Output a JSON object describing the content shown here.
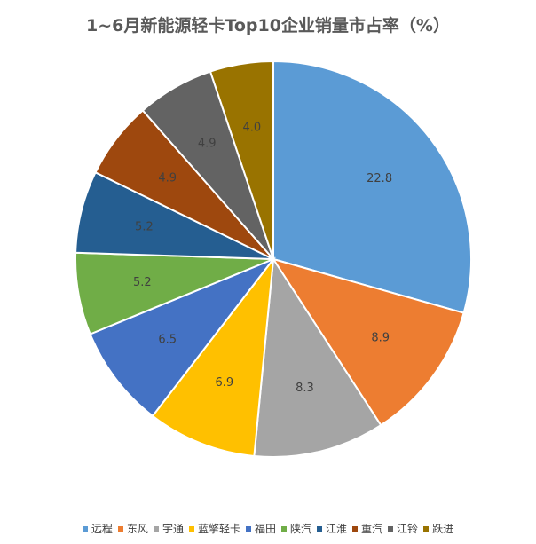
{
  "chart_data": {
    "type": "pie",
    "title": "1~6月新能源轻卡Top10企业销量市占率（%）",
    "categories": [
      "远程",
      "东风",
      "宇通",
      "蓝擎轻卡",
      "福田",
      "陕汽",
      "江淮",
      "重汽",
      "江铃",
      "跃进"
    ],
    "values": [
      22.8,
      8.9,
      8.3,
      6.9,
      6.5,
      5.2,
      5.2,
      4.9,
      4.9,
      4.0
    ],
    "labels": [
      "22.8",
      "8.9",
      "8.3",
      "6.9",
      "6.5",
      "5.2",
      "5.2",
      "4.9",
      "4.9",
      "4.0"
    ],
    "colors": [
      "#5b9bd5",
      "#ed7d31",
      "#a5a5a5",
      "#ffc000",
      "#4472c4",
      "#70ad47",
      "#255e91",
      "#9e480e",
      "#636363",
      "#997300"
    ],
    "label_colors": [
      "#404040",
      "#404040",
      "#404040",
      "#404040",
      "#404040",
      "#404040",
      "#404040",
      "#404040",
      "#404040",
      "#404040"
    ],
    "legend_position": "bottom"
  }
}
